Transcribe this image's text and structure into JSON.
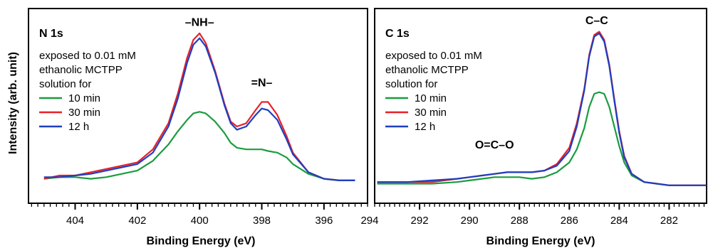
{
  "figure": {
    "ylabel": "Intensity (arb. unit)"
  },
  "chart_data": [
    {
      "type": "line",
      "title": "N 1s",
      "xlabel": "Binding Energy (eV)",
      "ylabel": "Intensity (arb. unit)",
      "xlim": [
        405.5,
        394.6
      ],
      "ylim": [
        0,
        1
      ],
      "x_reversed": true,
      "xticks": [
        404,
        402,
        400,
        398,
        396
      ],
      "grid": false,
      "legend_title": [
        "exposed to 0.01 mM",
        "ethanolic MCTPP",
        "solution for"
      ],
      "legend_position": "top-left",
      "annotations": [
        {
          "text": "–NH–",
          "x": 400.0,
          "y": 0.99
        },
        {
          "text": "=N–",
          "x": 398.0,
          "y": 0.62
        }
      ],
      "x": [
        405.0,
        404.5,
        404.0,
        403.5,
        403.0,
        402.5,
        402.0,
        401.5,
        401.0,
        400.7,
        400.4,
        400.2,
        400.0,
        399.8,
        399.5,
        399.2,
        399.0,
        398.8,
        398.5,
        398.2,
        398.0,
        397.8,
        397.5,
        397.2,
        397.0,
        396.5,
        396.0,
        395.5,
        395.0
      ],
      "series": [
        {
          "name": "10 min",
          "color": "#1a9c3e",
          "values": [
            0.08,
            0.09,
            0.09,
            0.08,
            0.09,
            0.11,
            0.13,
            0.19,
            0.29,
            0.37,
            0.44,
            0.48,
            0.49,
            0.48,
            0.43,
            0.36,
            0.3,
            0.27,
            0.26,
            0.26,
            0.26,
            0.25,
            0.24,
            0.21,
            0.17,
            0.11,
            0.08,
            0.07,
            0.07
          ]
        },
        {
          "name": "30 min",
          "color": "#e8202a",
          "values": [
            0.08,
            0.1,
            0.1,
            0.12,
            0.14,
            0.16,
            0.18,
            0.26,
            0.42,
            0.6,
            0.82,
            0.93,
            0.97,
            0.91,
            0.74,
            0.54,
            0.43,
            0.4,
            0.42,
            0.5,
            0.55,
            0.55,
            0.47,
            0.34,
            0.24,
            0.12,
            0.08,
            0.07,
            0.07
          ]
        },
        {
          "name": "12 h",
          "color": "#1f3fbf",
          "values": [
            0.09,
            0.09,
            0.1,
            0.11,
            0.13,
            0.15,
            0.17,
            0.24,
            0.4,
            0.57,
            0.79,
            0.9,
            0.94,
            0.89,
            0.73,
            0.53,
            0.42,
            0.38,
            0.4,
            0.47,
            0.51,
            0.5,
            0.44,
            0.32,
            0.23,
            0.12,
            0.08,
            0.07,
            0.07
          ]
        }
      ]
    },
    {
      "type": "line",
      "title": "C 1s",
      "xlabel": "Binding Energy (eV)",
      "ylabel": "Intensity (arb. unit)",
      "xlim": [
        293.8,
        280.5
      ],
      "ylim": [
        0,
        1
      ],
      "x_reversed": true,
      "xticks": [
        294,
        292,
        290,
        288,
        286,
        284,
        282
      ],
      "grid": false,
      "legend_title": [
        "exposed to 0.01 mM",
        "ethanolic MCTPP",
        "solution for"
      ],
      "legend_position": "top-left",
      "annotations": [
        {
          "text": "O=C–O",
          "x": 289.0,
          "y": 0.24
        },
        {
          "text": "C–C",
          "x": 284.9,
          "y": 1.0
        }
      ],
      "x": [
        293.7,
        292.5,
        291.5,
        290.5,
        290.0,
        289.5,
        289.0,
        288.5,
        288.0,
        287.5,
        287.0,
        286.5,
        286.0,
        285.7,
        285.4,
        285.2,
        285.0,
        284.8,
        284.6,
        284.4,
        284.2,
        284.0,
        283.8,
        283.5,
        283.0,
        282.5,
        282.0,
        281.0,
        280.5
      ],
      "series": [
        {
          "name": "10 min",
          "color": "#1a9c3e",
          "values": [
            0.05,
            0.05,
            0.05,
            0.06,
            0.07,
            0.08,
            0.09,
            0.09,
            0.09,
            0.08,
            0.09,
            0.12,
            0.18,
            0.26,
            0.39,
            0.52,
            0.6,
            0.61,
            0.6,
            0.52,
            0.4,
            0.28,
            0.18,
            0.1,
            0.06,
            0.05,
            0.04,
            0.04,
            0.04
          ]
        },
        {
          "name": "30 min",
          "color": "#e8202a",
          "values": [
            0.06,
            0.06,
            0.06,
            0.08,
            0.09,
            0.1,
            0.11,
            0.12,
            0.12,
            0.12,
            0.13,
            0.17,
            0.27,
            0.42,
            0.63,
            0.84,
            0.96,
            0.98,
            0.93,
            0.78,
            0.57,
            0.37,
            0.22,
            0.11,
            0.06,
            0.05,
            0.04,
            0.04,
            0.04
          ]
        },
        {
          "name": "12 h",
          "color": "#1f3fbf",
          "values": [
            0.06,
            0.06,
            0.07,
            0.08,
            0.09,
            0.1,
            0.11,
            0.12,
            0.12,
            0.12,
            0.13,
            0.16,
            0.25,
            0.4,
            0.62,
            0.83,
            0.95,
            0.97,
            0.92,
            0.77,
            0.56,
            0.36,
            0.21,
            0.11,
            0.06,
            0.05,
            0.04,
            0.04,
            0.04
          ]
        }
      ]
    }
  ]
}
